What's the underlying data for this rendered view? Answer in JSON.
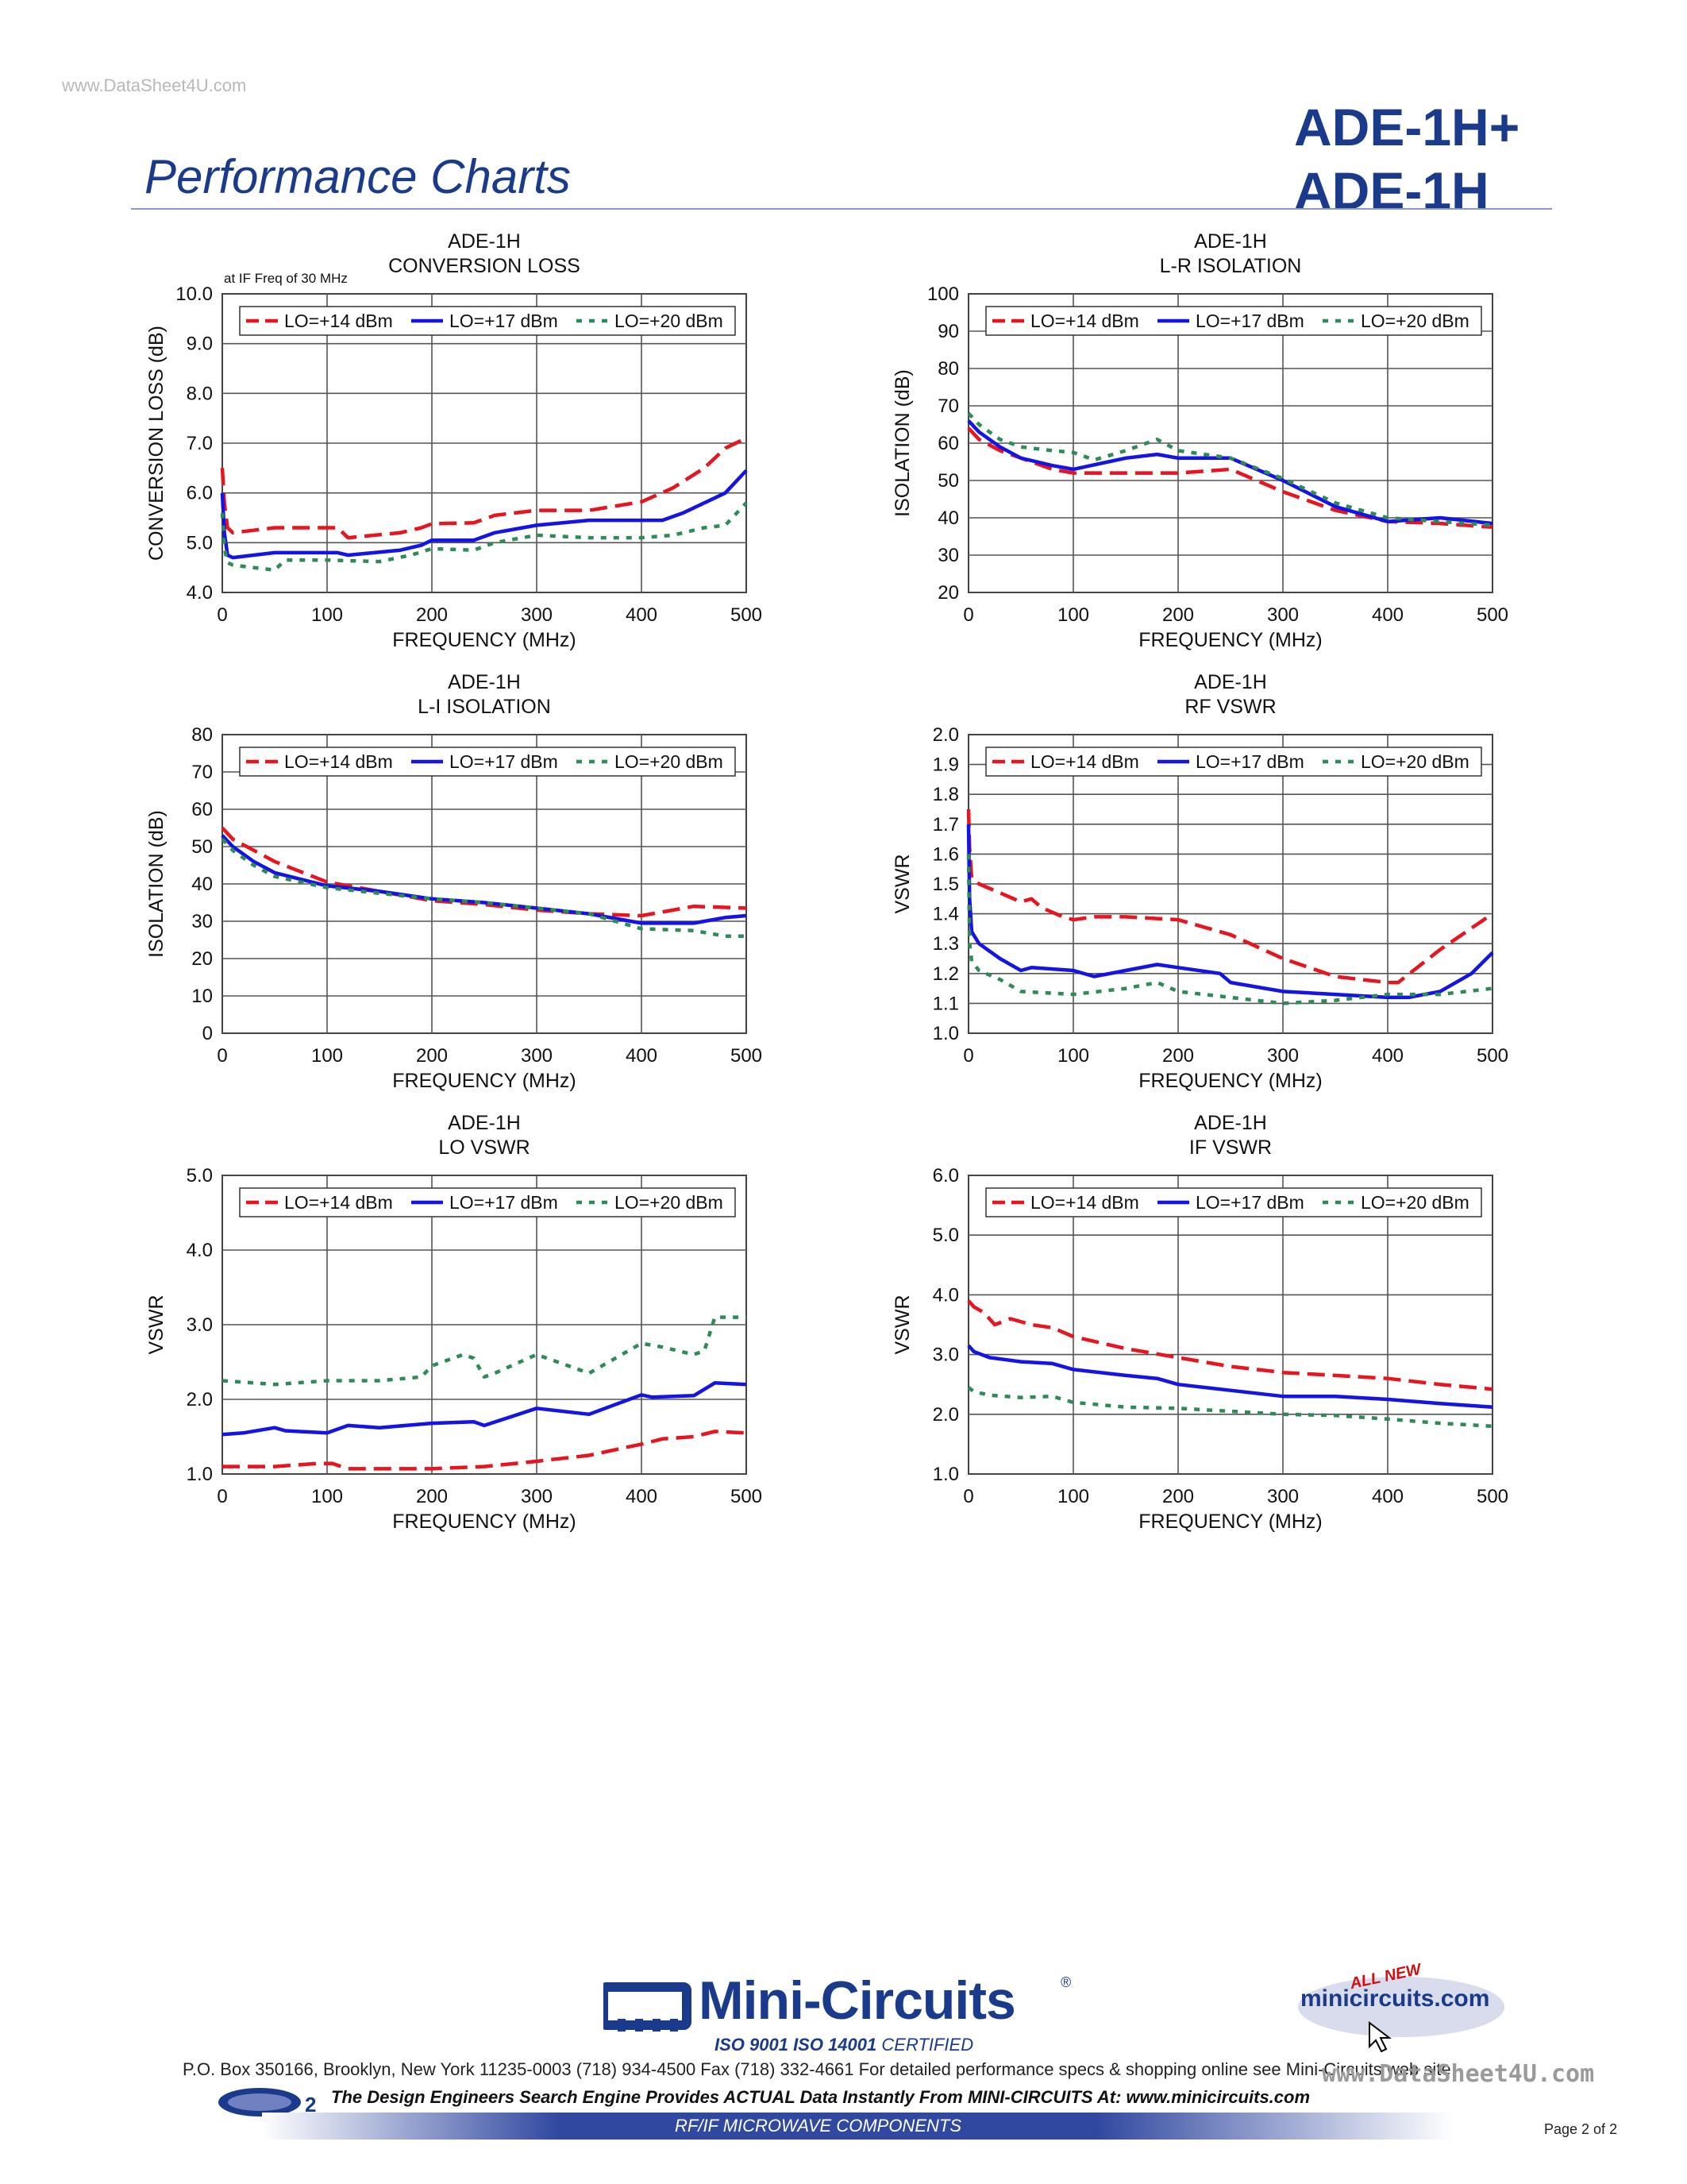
{
  "header": {
    "watermark": "www.DataSheet4U.com",
    "part_numbers": [
      "ADE-1H+",
      "ADE-1H"
    ],
    "heading": "Performance Charts"
  },
  "legend_labels": [
    "LO=+14 dBm",
    "LO=+17 dBm",
    "LO=+20 dBm"
  ],
  "colors": {
    "lo14": "#e8141e",
    "lo17": "#1414e6",
    "lo20": "#2e8b57",
    "brand": "#1a3a8c"
  },
  "chart_data": [
    {
      "id": "conversion-loss",
      "type": "line",
      "title": [
        "ADE-1H",
        "CONVERSION LOSS"
      ],
      "note": "at IF Freq of 30 MHz",
      "xlabel": "FREQUENCY (MHz)",
      "ylabel": "CONVERSION LOSS (dB)",
      "xlim": [
        0,
        500
      ],
      "ylim": [
        4.0,
        10.0
      ],
      "xticks": [
        "0",
        "100",
        "200",
        "300",
        "400",
        "500"
      ],
      "yticks": [
        "4.0",
        "5.0",
        "6.0",
        "7.0",
        "8.0",
        "9.0",
        "10.0"
      ],
      "grid": true,
      "series": [
        {
          "name": "LO=+14 dBm",
          "x": [
            0,
            2,
            5,
            10,
            30,
            50,
            80,
            110,
            120,
            170,
            190,
            200,
            240,
            260,
            300,
            350,
            400,
            430,
            460,
            480,
            500
          ],
          "y": [
            6.5,
            5.8,
            5.3,
            5.2,
            5.25,
            5.3,
            5.3,
            5.3,
            5.1,
            5.2,
            5.3,
            5.38,
            5.4,
            5.55,
            5.65,
            5.65,
            5.82,
            6.1,
            6.5,
            6.9,
            7.1
          ]
        },
        {
          "name": "LO=+17 dBm",
          "x": [
            0,
            2,
            5,
            10,
            30,
            50,
            80,
            110,
            120,
            170,
            190,
            200,
            240,
            260,
            300,
            350,
            400,
            420,
            440,
            480,
            500
          ],
          "y": [
            6.0,
            5.2,
            4.75,
            4.7,
            4.75,
            4.8,
            4.8,
            4.8,
            4.75,
            4.85,
            4.95,
            5.05,
            5.05,
            5.2,
            5.35,
            5.45,
            5.45,
            5.45,
            5.6,
            6.0,
            6.45
          ]
        },
        {
          "name": "LO=+20 dBm",
          "x": [
            0,
            2,
            5,
            10,
            30,
            50,
            60,
            100,
            150,
            180,
            200,
            240,
            260,
            300,
            350,
            400,
            430,
            460,
            480,
            500
          ],
          "y": [
            5.6,
            4.9,
            4.6,
            4.55,
            4.5,
            4.45,
            4.65,
            4.65,
            4.62,
            4.75,
            4.88,
            4.85,
            5.0,
            5.15,
            5.1,
            5.1,
            5.15,
            5.3,
            5.35,
            5.8
          ]
        }
      ]
    },
    {
      "id": "lr-isolation",
      "type": "line",
      "title": [
        "ADE-1H",
        "L-R ISOLATION"
      ],
      "xlabel": "FREQUENCY (MHz)",
      "ylabel": "ISOLATION (dB)",
      "xlim": [
        0,
        500
      ],
      "ylim": [
        20,
        100
      ],
      "xticks": [
        "0",
        "100",
        "200",
        "300",
        "400",
        "500"
      ],
      "yticks": [
        "20",
        "30",
        "40",
        "50",
        "60",
        "70",
        "80",
        "90",
        "100"
      ],
      "grid": true,
      "series": [
        {
          "name": "LO=+14 dBm",
          "x": [
            0,
            10,
            30,
            50,
            80,
            100,
            150,
            200,
            250,
            300,
            350,
            400,
            450,
            500
          ],
          "y": [
            64,
            61,
            58,
            56,
            53,
            52,
            52,
            52,
            53,
            47,
            42,
            39,
            38.5,
            37.5
          ]
        },
        {
          "name": "LO=+17 dBm",
          "x": [
            0,
            10,
            30,
            50,
            80,
            100,
            150,
            180,
            200,
            250,
            300,
            350,
            400,
            450,
            500
          ],
          "y": [
            66,
            63,
            59,
            56,
            54,
            53,
            56,
            57,
            56,
            56,
            50,
            43,
            39,
            40,
            38.5
          ]
        },
        {
          "name": "LO=+20 dBm",
          "x": [
            0,
            10,
            30,
            50,
            80,
            100,
            120,
            150,
            180,
            200,
            250,
            300,
            350,
            400,
            450,
            500
          ],
          "y": [
            68,
            65,
            61,
            59,
            58,
            57.5,
            55.5,
            58,
            61,
            58,
            56,
            50.5,
            44,
            40,
            39,
            38
          ]
        }
      ]
    },
    {
      "id": "li-isolation",
      "type": "line",
      "title": [
        "ADE-1H",
        "L-I ISOLATION"
      ],
      "xlabel": "FREQUENCY (MHz)",
      "ylabel": "ISOLATION (dB)",
      "xlim": [
        0,
        500
      ],
      "ylim": [
        0,
        80
      ],
      "xticks": [
        "0",
        "100",
        "200",
        "300",
        "400",
        "500"
      ],
      "yticks": [
        "0",
        "10",
        "20",
        "30",
        "40",
        "50",
        "60",
        "70",
        "80"
      ],
      "grid": true,
      "series": [
        {
          "name": "LO=+14 dBm",
          "x": [
            0,
            10,
            30,
            50,
            100,
            150,
            200,
            250,
            300,
            350,
            400,
            450,
            500
          ],
          "y": [
            55,
            52,
            49,
            46,
            40.5,
            38,
            35.5,
            34.5,
            33,
            32,
            31.5,
            34,
            33.5
          ]
        },
        {
          "name": "LO=+17 dBm",
          "x": [
            0,
            10,
            30,
            50,
            100,
            150,
            200,
            250,
            300,
            350,
            400,
            450,
            480,
            500
          ],
          "y": [
            53,
            50,
            46,
            43,
            39.5,
            38,
            36,
            35,
            33.5,
            32,
            29.5,
            29.5,
            31,
            31.5
          ]
        },
        {
          "name": "LO=+20 dBm",
          "x": [
            0,
            10,
            30,
            50,
            100,
            150,
            200,
            250,
            300,
            350,
            400,
            450,
            480,
            500
          ],
          "y": [
            52,
            49,
            45,
            42,
            39,
            37.5,
            36,
            35,
            33.5,
            32,
            28,
            27.5,
            26,
            26
          ]
        }
      ]
    },
    {
      "id": "rf-vswr",
      "type": "line",
      "title": [
        "ADE-1H",
        "RF VSWR"
      ],
      "xlabel": "FREQUENCY (MHz)",
      "ylabel": "VSWR",
      "xlim": [
        0,
        500
      ],
      "ylim": [
        1.0,
        2.0
      ],
      "xticks": [
        "0",
        "100",
        "200",
        "300",
        "400",
        "500"
      ],
      "yticks": [
        "1.0",
        "1.1",
        "1.2",
        "1.3",
        "1.4",
        "1.5",
        "1.6",
        "1.7",
        "1.8",
        "1.9",
        "2.0"
      ],
      "grid": true,
      "series": [
        {
          "name": "LO=+14 dBm",
          "x": [
            0,
            1,
            3,
            10,
            30,
            50,
            60,
            70,
            90,
            100,
            120,
            150,
            200,
            250,
            300,
            350,
            400,
            410,
            450,
            500
          ],
          "y": [
            1.75,
            1.62,
            1.52,
            1.5,
            1.47,
            1.44,
            1.45,
            1.42,
            1.39,
            1.38,
            1.39,
            1.39,
            1.38,
            1.33,
            1.25,
            1.19,
            1.17,
            1.17,
            1.28,
            1.4
          ]
        },
        {
          "name": "LO=+17 dBm",
          "x": [
            0,
            1,
            3,
            10,
            30,
            50,
            60,
            100,
            120,
            150,
            180,
            200,
            240,
            250,
            300,
            350,
            400,
            420,
            450,
            480,
            500
          ],
          "y": [
            1.7,
            1.45,
            1.34,
            1.3,
            1.25,
            1.21,
            1.22,
            1.21,
            1.19,
            1.21,
            1.23,
            1.22,
            1.2,
            1.17,
            1.14,
            1.13,
            1.12,
            1.12,
            1.14,
            1.2,
            1.27
          ]
        },
        {
          "name": "LO=+20 dBm",
          "x": [
            0,
            1,
            3,
            10,
            30,
            50,
            100,
            150,
            180,
            200,
            250,
            300,
            350,
            400,
            450,
            500
          ],
          "y": [
            1.6,
            1.3,
            1.24,
            1.21,
            1.18,
            1.14,
            1.13,
            1.15,
            1.17,
            1.14,
            1.12,
            1.1,
            1.11,
            1.13,
            1.13,
            1.15
          ]
        }
      ]
    },
    {
      "id": "lo-vswr",
      "type": "line",
      "title": [
        "ADE-1H",
        "LO VSWR"
      ],
      "xlabel": "FREQUENCY (MHz)",
      "ylabel": "VSWR",
      "xlim": [
        0,
        500
      ],
      "ylim": [
        1.0,
        5.0
      ],
      "xticks": [
        "0",
        "100",
        "200",
        "300",
        "400",
        "500"
      ],
      "yticks": [
        "1.0",
        "2.0",
        "3.0",
        "4.0",
        "5.0"
      ],
      "grid": true,
      "series": [
        {
          "name": "LO=+14 dBm",
          "x": [
            0,
            50,
            90,
            105,
            120,
            200,
            250,
            300,
            350,
            400,
            420,
            450,
            470,
            500
          ],
          "y": [
            1.1,
            1.1,
            1.14,
            1.14,
            1.07,
            1.07,
            1.1,
            1.17,
            1.25,
            1.4,
            1.47,
            1.5,
            1.57,
            1.55
          ]
        },
        {
          "name": "LO=+17 dBm",
          "x": [
            0,
            20,
            50,
            60,
            100,
            120,
            150,
            200,
            240,
            250,
            300,
            350,
            400,
            410,
            450,
            470,
            500
          ],
          "y": [
            1.53,
            1.55,
            1.62,
            1.58,
            1.55,
            1.65,
            1.62,
            1.68,
            1.7,
            1.65,
            1.88,
            1.8,
            2.06,
            2.03,
            2.05,
            2.22,
            2.2
          ]
        },
        {
          "name": "LO=+20 dBm",
          "x": [
            0,
            50,
            100,
            150,
            190,
            200,
            230,
            240,
            250,
            260,
            300,
            350,
            400,
            420,
            450,
            460,
            470,
            500
          ],
          "y": [
            2.25,
            2.2,
            2.25,
            2.25,
            2.3,
            2.45,
            2.6,
            2.55,
            2.3,
            2.35,
            2.6,
            2.35,
            2.75,
            2.7,
            2.6,
            2.65,
            3.1,
            3.1
          ]
        }
      ]
    },
    {
      "id": "if-vswr",
      "type": "line",
      "title": [
        "ADE-1H",
        "IF VSWR"
      ],
      "xlabel": "FREQUENCY (MHz)",
      "ylabel": "VSWR",
      "xlim": [
        0,
        500
      ],
      "ylim": [
        1.0,
        6.0
      ],
      "xticks": [
        "0",
        "100",
        "200",
        "300",
        "400",
        "500"
      ],
      "yticks": [
        "1.0",
        "2.0",
        "3.0",
        "4.0",
        "5.0",
        "6.0"
      ],
      "grid": true,
      "series": [
        {
          "name": "LO=+14 dBm",
          "x": [
            0,
            5,
            15,
            25,
            40,
            60,
            80,
            100,
            150,
            200,
            250,
            300,
            350,
            400,
            450,
            500
          ],
          "y": [
            3.9,
            3.8,
            3.7,
            3.5,
            3.6,
            3.5,
            3.45,
            3.3,
            3.1,
            2.95,
            2.8,
            2.7,
            2.65,
            2.6,
            2.5,
            2.42
          ]
        },
        {
          "name": "LO=+17 dBm",
          "x": [
            0,
            5,
            20,
            50,
            80,
            100,
            150,
            180,
            200,
            250,
            300,
            350,
            400,
            450,
            500
          ],
          "y": [
            3.15,
            3.05,
            2.95,
            2.88,
            2.85,
            2.75,
            2.65,
            2.6,
            2.5,
            2.4,
            2.3,
            2.3,
            2.25,
            2.18,
            2.12
          ]
        },
        {
          "name": "LO=+20 dBm",
          "x": [
            0,
            5,
            20,
            50,
            80,
            100,
            150,
            200,
            250,
            300,
            350,
            400,
            450,
            500
          ],
          "y": [
            2.45,
            2.38,
            2.32,
            2.28,
            2.3,
            2.2,
            2.12,
            2.1,
            2.05,
            2.0,
            1.98,
            1.92,
            1.85,
            1.8
          ]
        }
      ]
    }
  ],
  "footer": {
    "brand": "Mini-Circuits",
    "registered": "®",
    "iso_cert": "ISO 9001  ISO 14001",
    "iso_certified": "CERTIFIED",
    "website_badge_new": "ALL NEW",
    "website": "minicircuits.com",
    "address": "P.O. Box 350166, Brooklyn, New York 11235-0003 (718) 934-4500  Fax (718) 332-4661 For detailed performance specs & shopping online see Mini-Circuits web site",
    "tagline": "The Design Engineers Search Engine  Provides ACTUAL Data Instantly From MINI-CIRCUITS At: www.minicircuits.com",
    "band_text": "RF/IF MICROWAVE COMPONENTS",
    "page_number": "Page 2 of 2",
    "watermark": "www.DataSheet4U.com"
  }
}
